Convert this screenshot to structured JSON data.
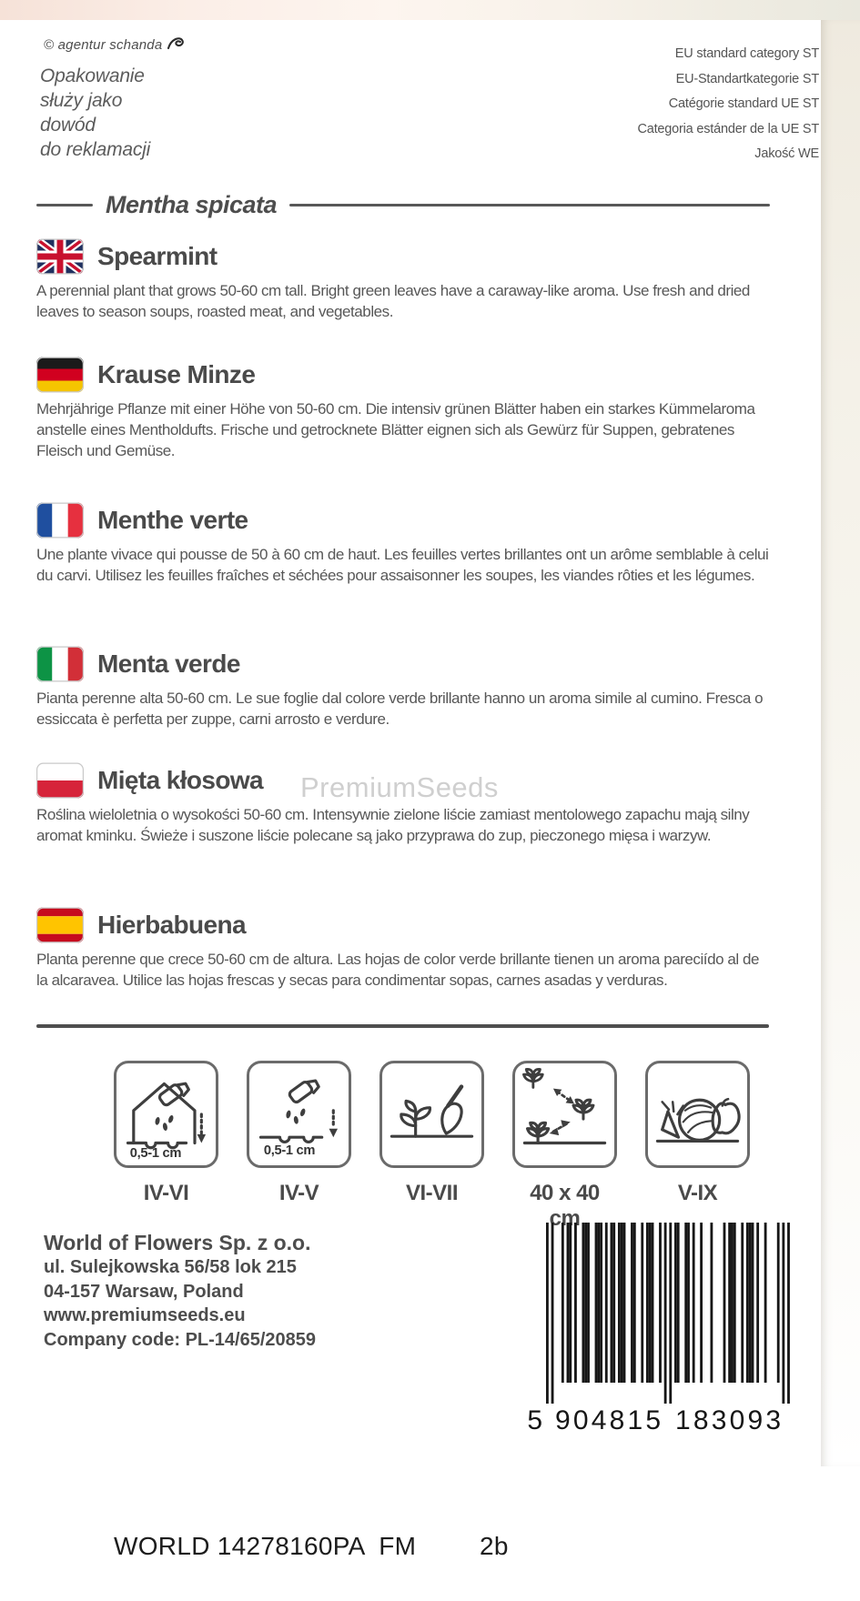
{
  "photo_background": {
    "top_tint": "#f6e2d8",
    "right_tint": "#efeadf"
  },
  "header": {
    "copyright": "© agentur schanda",
    "claim_lines": [
      "Opakowanie",
      "służy jako",
      "dowód",
      "do reklamacji"
    ],
    "eu_lines": [
      "EU standard category ST",
      "EU-Standartkategorie ST",
      "Catégorie standard UE ST",
      "Categoria estánder de la UE ST",
      "Jakość WE"
    ]
  },
  "species": {
    "title": "Mentha spicata"
  },
  "watermark": {
    "text": "PremiumSeeds"
  },
  "sections": [
    {
      "flag": "united-kingdom",
      "title": "Spearmint",
      "text": "A perennial plant that grows 50-60 cm tall. Bright green leaves have a caraway-like aroma. Use fresh and dried leaves to season soups, roasted meat, and vegetables."
    },
    {
      "flag": "germany",
      "title": "Krause Minze",
      "text": "Mehrjährige Pflanze mit einer Höhe von 50-60 cm. Die intensiv grünen Blätter haben ein starkes Küm­melaroma anstelle eines Mentholdufts. Frische und getrocknete Blätter eignen sich als Gewürz für Sup­pen, gebratenes Fleisch und Gemüse."
    },
    {
      "flag": "france",
      "title": "Menthe verte",
      "text": "Une plante vivace qui pousse de 50 à 60 cm de haut. Les feuilles vertes brillantes ont un arôme sem­blable à celui du carvi. Utilisez les feuilles fraîches et séchées pour assaisonner les soupes, les viandes rôties et les légumes."
    },
    {
      "flag": "italy",
      "title": "Menta verde",
      "text": "Pianta perenne alta 50-60 cm. Le sue foglie dal colore verde brillante hanno un aroma simile al cumino. Fresca o essiccata è perfetta per zuppe, carni arrosto e verdure."
    },
    {
      "flag": "poland",
      "title": "Mięta kłosowa",
      "text": "Roślina wieloletnia o wysokości 50-60 cm. Intensywnie zielone liście zamiast mentolowego zapachu mają silny aromat kminku. Świeże i suszone liście polecane są jako przyprawa do zup, pieczonego mięsa i warzyw."
    },
    {
      "flag": "spain",
      "title": "Hierbabuena",
      "text": "Planta perenne que crece 50-60 cm de altura. Las hojas de color verde brillante tienen un aroma pareciído al de la alcaravea. Utilice las hojas frescas y secas para condimentar sopas, carnes asadas y verduras."
    }
  ],
  "flag_colors": {
    "uk_blue": "#20305f",
    "uk_red": "#c8102e",
    "de_black": "#1a1a1a",
    "de_red": "#d1001f",
    "de_gold": "#f5c400",
    "fr_blue": "#1f4f9f",
    "fr_red": "#e6303f",
    "it_green": "#0d9345",
    "it_red": "#d22f38",
    "pl_red": "#d6243a",
    "es_red": "#c60b1e",
    "es_yellow": "#ffc400"
  },
  "icons": [
    {
      "name": "sow-indoors",
      "depth": "0,5-1 cm",
      "label": "IV-VI"
    },
    {
      "name": "sow-outdoors",
      "depth": "0,5-1 cm",
      "label": "IV-V"
    },
    {
      "name": "plant-out",
      "label": "VI-VII"
    },
    {
      "name": "plant-spacing",
      "label": "40 x 40 cm"
    },
    {
      "name": "harvest",
      "label": "V-IX"
    }
  ],
  "company": {
    "name": "World of Flowers Sp. z o.o.",
    "address_line1": "ul. Sulejkowska 56/58 lok 215",
    "address_line2": "04-157 Warsaw, Poland",
    "website": "www.premiumseeds.eu",
    "company_code": "Company code: PL-14/65/20859"
  },
  "barcode": {
    "digits": "5904815183093",
    "human": [
      "5",
      "904815",
      "183093"
    ]
  },
  "footer": {
    "print_code": "WORLD 14278160PA  FM",
    "page_ref": "2b"
  }
}
